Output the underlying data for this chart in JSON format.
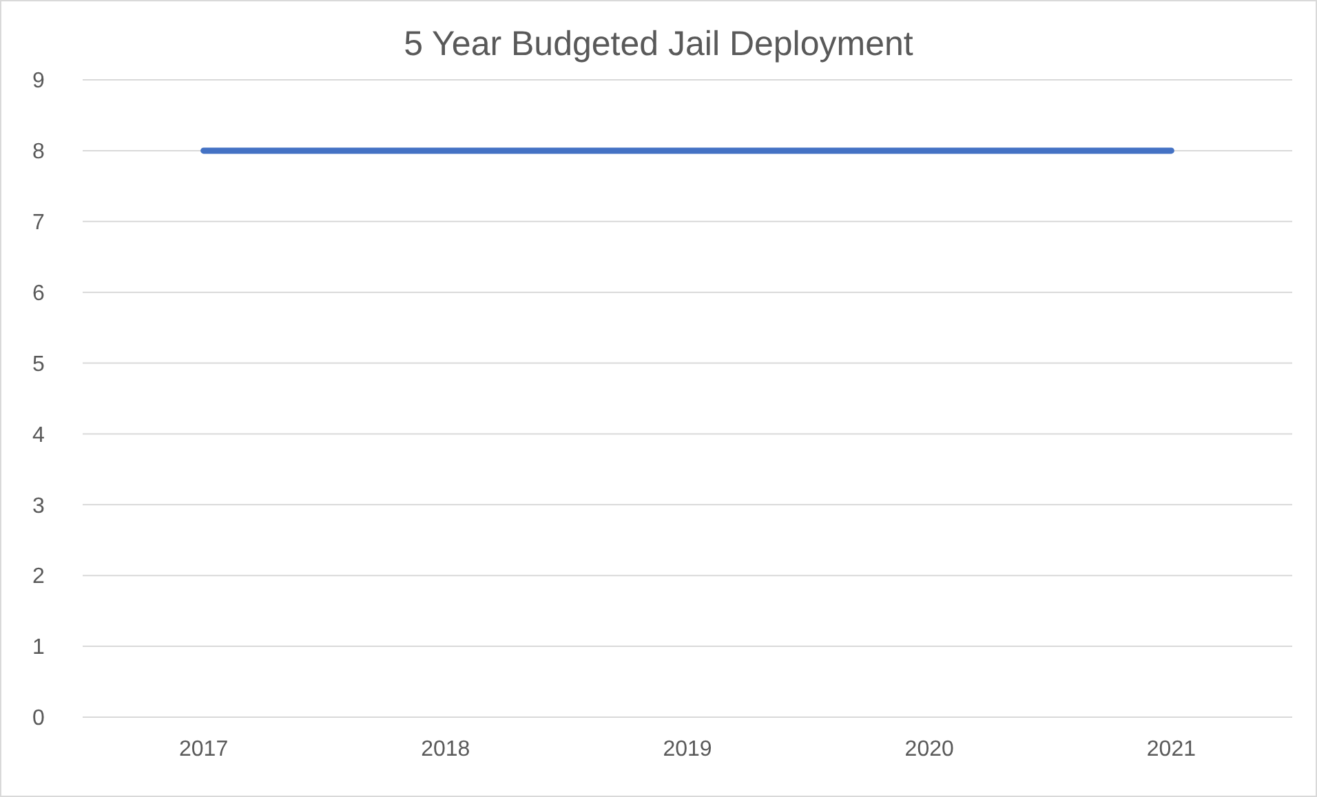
{
  "chart_data": {
    "type": "line",
    "title": "5 Year Budgeted Jail Deployment",
    "categories": [
      "2017",
      "2018",
      "2019",
      "2020",
      "2021"
    ],
    "series": [
      {
        "color": "#4472c4",
        "values": [
          8,
          8,
          8,
          8,
          8
        ]
      }
    ],
    "ylim": [
      0,
      9
    ],
    "yticks": [
      0,
      1,
      2,
      3,
      4,
      5,
      6,
      7,
      8,
      9
    ],
    "grid": "y",
    "marker": "none",
    "line_style": "solid"
  }
}
